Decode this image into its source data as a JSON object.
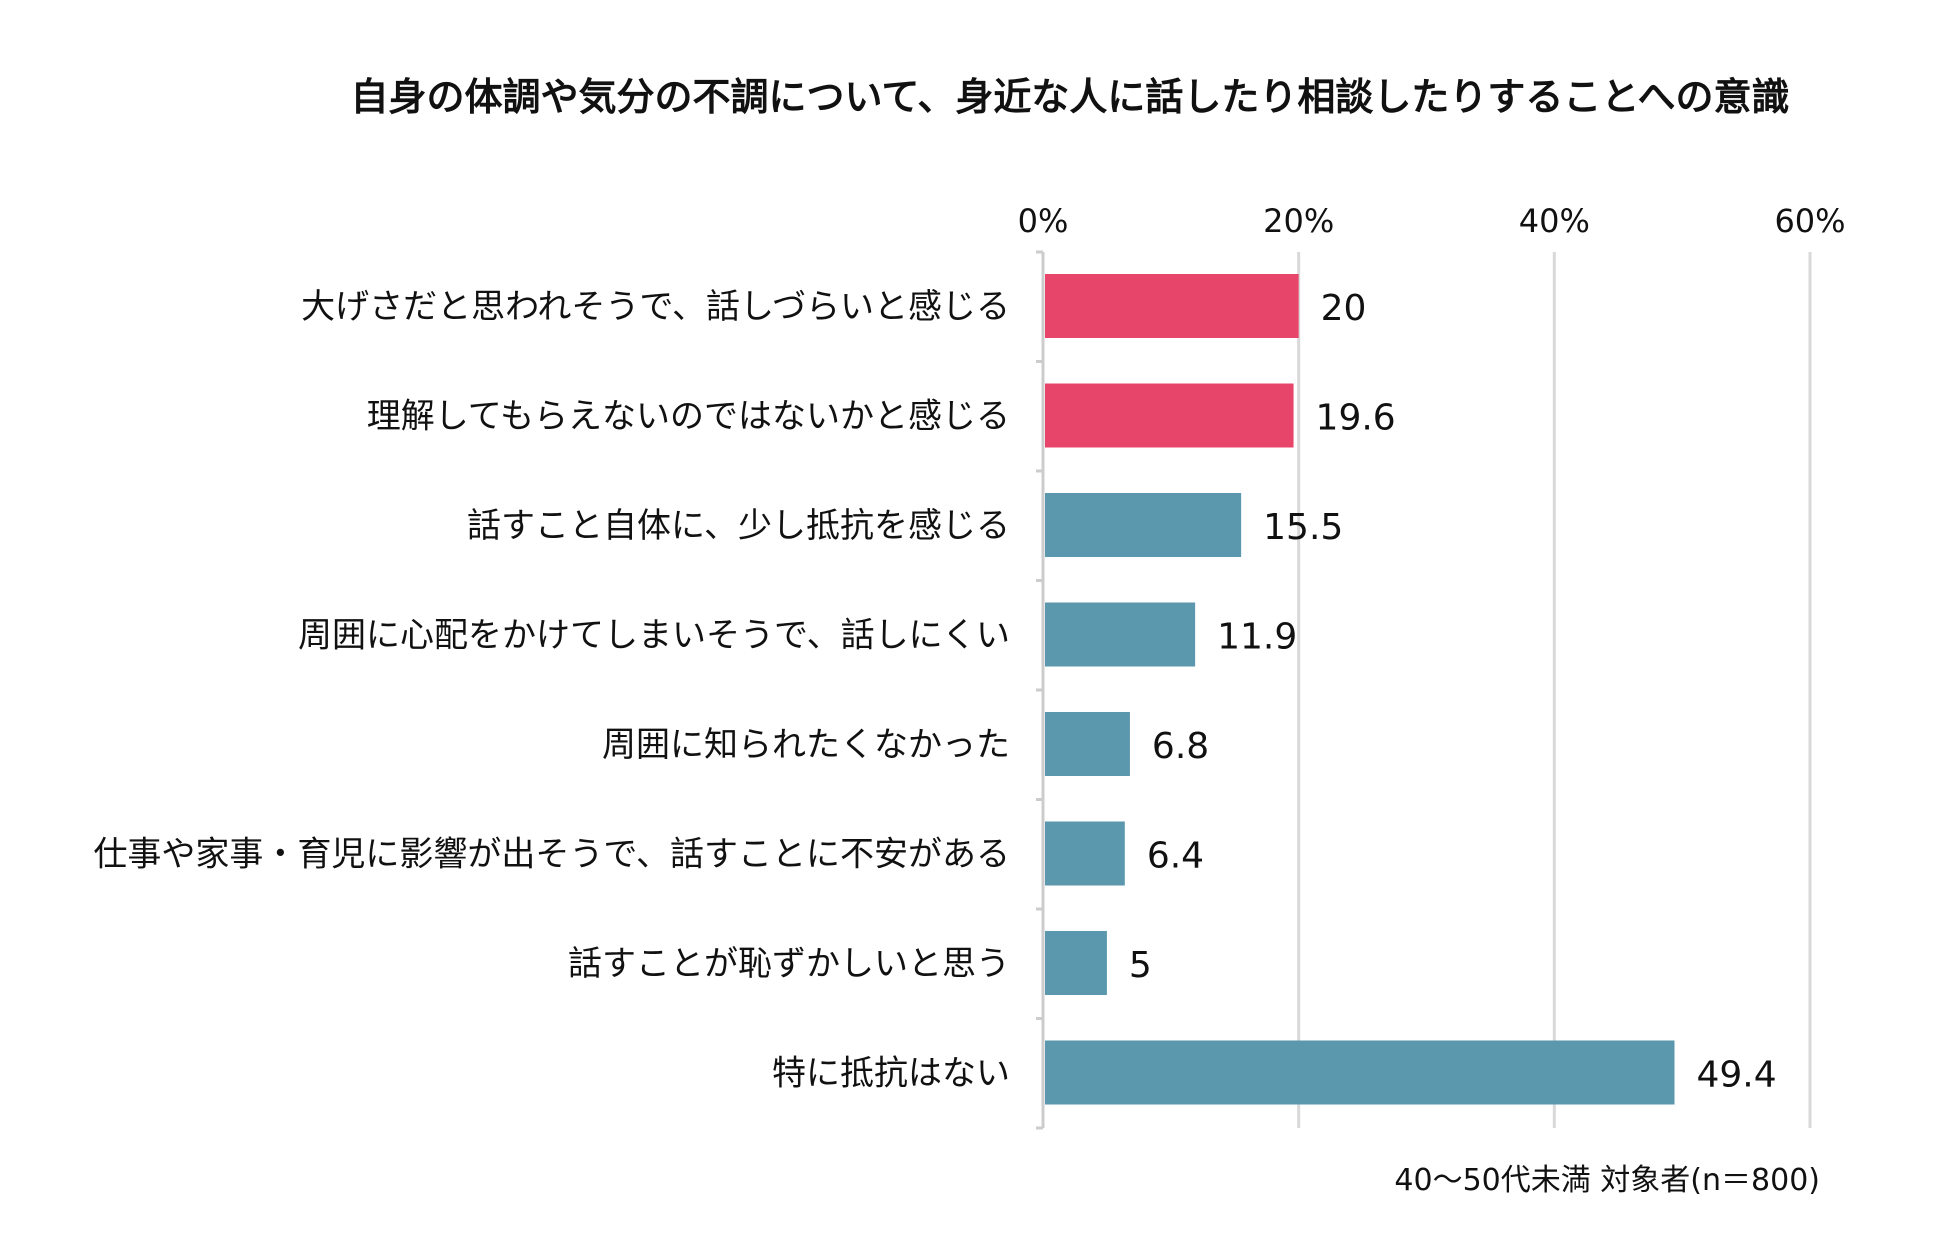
{
  "chart_data": {
    "type": "bar",
    "orientation": "horizontal",
    "title": "自身の体調や気分の不調について、身近な人に話したり相談したりすることへの意識",
    "categories": [
      "大げさだと思われそうで、話しづらいと感じる",
      "理解してもらえないのではないかと感じる",
      "話すこと自体に、少し抵抗を感じる",
      "周囲に心配をかけてしまいそうで、話しにくい",
      "周囲に知られたくなかった",
      "仕事や家事・育児に影響が出そうで、話すことに不安がある",
      "話すことが恥ずかしいと思う",
      "特に抵抗はない"
    ],
    "values": [
      20,
      19.6,
      15.5,
      11.9,
      6.8,
      6.4,
      5,
      49.4
    ],
    "value_labels": [
      "20",
      "19.6",
      "15.5",
      "11.9",
      "6.8",
      "6.4",
      "5",
      "49.4"
    ],
    "highlight": [
      true,
      true,
      false,
      false,
      false,
      false,
      false,
      false
    ],
    "xlim": [
      0,
      60
    ],
    "xticks": [
      0,
      20,
      40,
      60
    ],
    "xtick_labels": [
      "0%",
      "20%",
      "40%",
      "60%"
    ],
    "xlabel": "",
    "ylabel": "",
    "grid": true,
    "note": "40〜50代未満 対象者(n＝800)",
    "colors": {
      "highlight": "#e8456b",
      "default": "#5b97ad",
      "grid": "#d9d9d9",
      "axis": "#cccccc",
      "text": "#111111"
    }
  }
}
